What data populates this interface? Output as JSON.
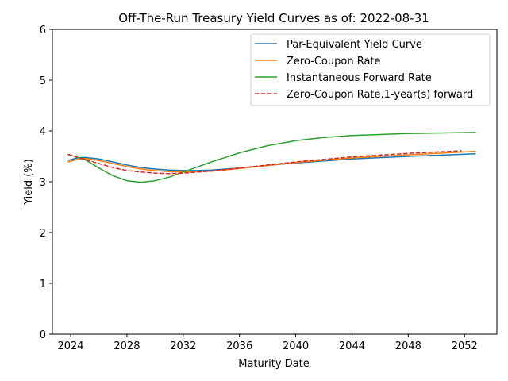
{
  "chart_data": {
    "type": "line",
    "title": "Off-The-Run Treasury Yield Curves as of: 2022-08-31",
    "xlabel": "Maturity Date",
    "ylabel": "Yield (%)",
    "xlim": [
      2022.7,
      2054.3
    ],
    "ylim": [
      0,
      6
    ],
    "xticks": [
      2024,
      2028,
      2032,
      2036,
      2040,
      2044,
      2048,
      2052
    ],
    "yticks": [
      0,
      1,
      2,
      3,
      4,
      5,
      6
    ],
    "grid": false,
    "legend_position": "top-right",
    "series": [
      {
        "name": "Par-Equivalent Yield Curve",
        "color": "#1f77b4",
        "style": "solid",
        "x": [
          2023.8,
          2024.5,
          2025.0,
          2026.0,
          2027.0,
          2028.0,
          2029.0,
          2030.0,
          2031.0,
          2032.0,
          2033.0,
          2034.0,
          2036.0,
          2038.0,
          2040.0,
          2044.0,
          2048.0,
          2052.8
        ],
        "y": [
          3.42,
          3.47,
          3.48,
          3.45,
          3.39,
          3.33,
          3.28,
          3.25,
          3.23,
          3.22,
          3.22,
          3.23,
          3.27,
          3.32,
          3.37,
          3.45,
          3.5,
          3.55
        ]
      },
      {
        "name": "Zero-Coupon Rate",
        "color": "#ff7f0e",
        "style": "solid",
        "x": [
          2023.8,
          2024.5,
          2025.0,
          2026.0,
          2027.0,
          2028.0,
          2029.0,
          2030.0,
          2031.0,
          2032.0,
          2033.0,
          2034.0,
          2036.0,
          2038.0,
          2040.0,
          2044.0,
          2048.0,
          2052.8
        ],
        "y": [
          3.39,
          3.44,
          3.46,
          3.42,
          3.36,
          3.3,
          3.25,
          3.22,
          3.2,
          3.19,
          3.2,
          3.21,
          3.26,
          3.32,
          3.38,
          3.47,
          3.53,
          3.6
        ]
      },
      {
        "name": "Instantaneous Forward Rate",
        "color": "#2ca02c",
        "style": "solid",
        "x": [
          2023.8,
          2024.5,
          2025.0,
          2026.0,
          2027.0,
          2028.0,
          2029.0,
          2030.0,
          2031.0,
          2032.0,
          2033.0,
          2034.0,
          2035.0,
          2036.0,
          2037.0,
          2038.0,
          2040.0,
          2042.0,
          2044.0,
          2046.0,
          2048.0,
          2050.0,
          2052.8
        ],
        "y": [
          3.54,
          3.48,
          3.44,
          3.27,
          3.12,
          3.02,
          2.99,
          3.02,
          3.09,
          3.19,
          3.29,
          3.39,
          3.48,
          3.57,
          3.64,
          3.71,
          3.81,
          3.87,
          3.91,
          3.93,
          3.95,
          3.96,
          3.97
        ]
      },
      {
        "name": "Zero-Coupon Rate,1-year(s) forward",
        "color": "#d62728",
        "style": "dashed",
        "x": [
          2023.8,
          2024.5,
          2025.0,
          2026.0,
          2027.0,
          2028.0,
          2029.0,
          2030.0,
          2031.0,
          2032.0,
          2033.0,
          2034.0,
          2036.0,
          2038.0,
          2040.0,
          2044.0,
          2048.0,
          2051.8
        ],
        "y": [
          3.54,
          3.48,
          3.44,
          3.36,
          3.28,
          3.22,
          3.19,
          3.17,
          3.16,
          3.17,
          3.19,
          3.21,
          3.27,
          3.33,
          3.39,
          3.49,
          3.56,
          3.61
        ]
      }
    ]
  }
}
